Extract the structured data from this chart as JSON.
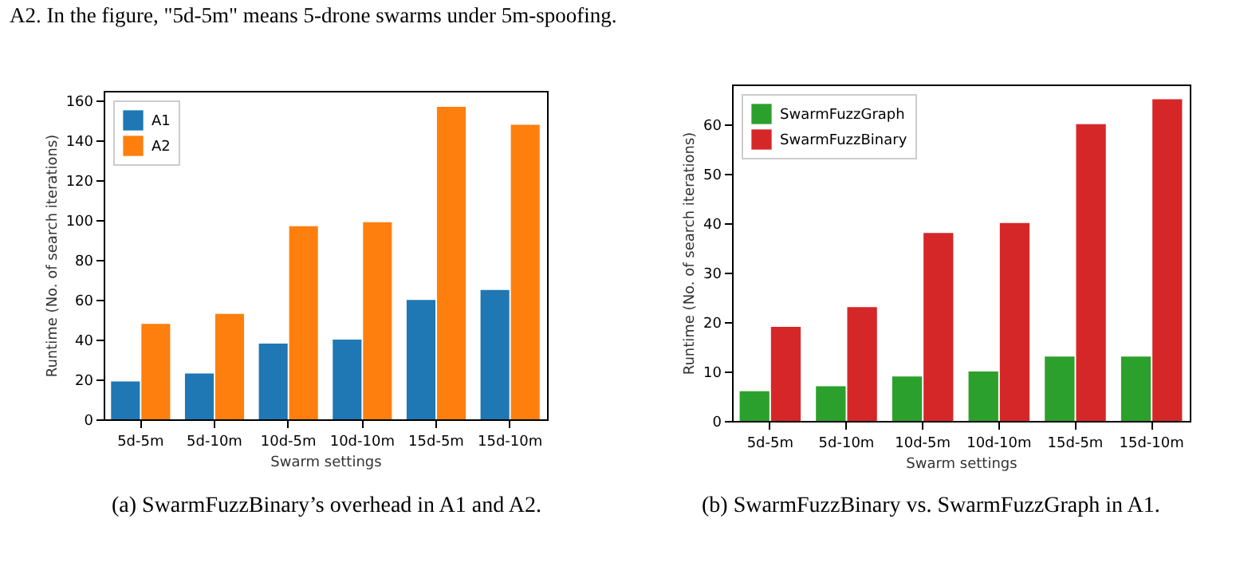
{
  "chart_data": [
    {
      "type": "bar",
      "xlabel": "Swarm settings",
      "ylabel": "Runtime (No. of search iterations)",
      "categories": [
        "5d-5m",
        "5d-10m",
        "10d-5m",
        "10d-10m",
        "15d-5m",
        "15d-10m"
      ],
      "series": [
        {
          "name": "A1",
          "color": "#1f77b4",
          "values": [
            19,
            23,
            38,
            40,
            60,
            65
          ]
        },
        {
          "name": "A2",
          "color": "#ff7f0e",
          "values": [
            48,
            53,
            97,
            99,
            157,
            148
          ]
        }
      ],
      "ylim": [
        0,
        165
      ],
      "yticks": [
        0,
        20,
        40,
        60,
        80,
        100,
        120,
        140,
        160
      ],
      "grid": false,
      "legend": "top left",
      "annotations": [
        "A2. In the figure, \"5d-5m\" means 5-drone swarms under 5m-spoofing.",
        "(a) SwarmFuzzBinary’s overhead in A1 and A2."
      ]
    },
    {
      "type": "bar",
      "xlabel": "Swarm settings",
      "ylabel": "Runtime (No. of search iterations)",
      "categories": [
        "5d-5m",
        "5d-10m",
        "10d-5m",
        "10d-10m",
        "15d-5m",
        "15d-10m"
      ],
      "series": [
        {
          "name": "SwarmFuzzGraph",
          "color": "#2ca02c",
          "values": [
            6,
            7,
            9,
            10,
            13,
            13
          ]
        },
        {
          "name": "SwarmFuzzBinary",
          "color": "#d62728",
          "values": [
            19,
            23,
            38,
            40,
            60,
            65
          ]
        }
      ],
      "ylim": [
        0,
        68
      ],
      "yticks": [
        0,
        10,
        20,
        30,
        40,
        50,
        60
      ],
      "grid": false,
      "legend": "top left",
      "annotations": [
        "(b) SwarmFuzzBinary vs. SwarmFuzzGraph in A1."
      ]
    }
  ]
}
